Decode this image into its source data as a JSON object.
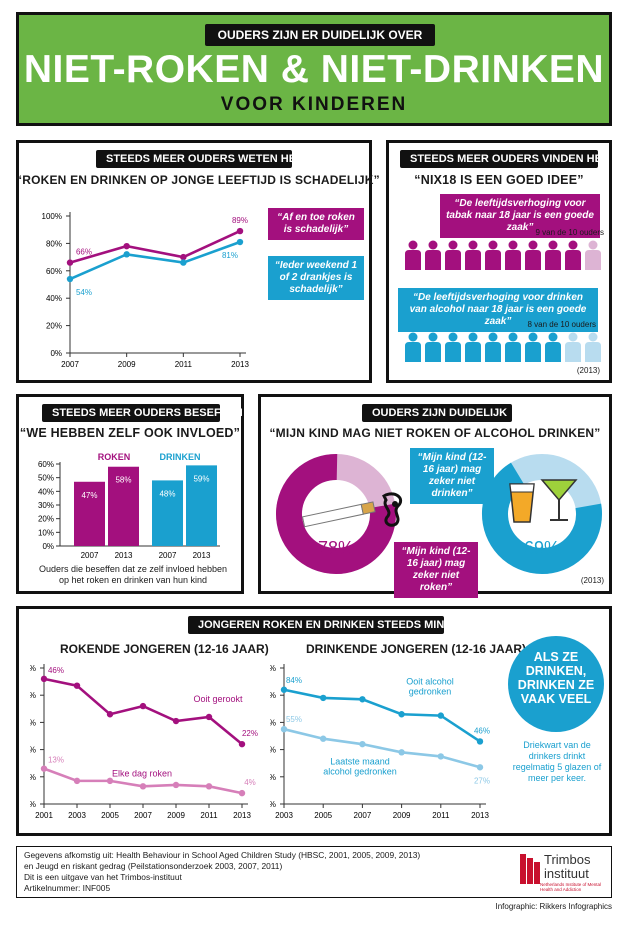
{
  "colors": {
    "green": "#6bb545",
    "purple": "#a3107e",
    "blue": "#1aa0cf",
    "lightpurple": "#ddb4d4",
    "lightblue": "#b8dcef",
    "dark": "#111111"
  },
  "header": {
    "pill": "OUDERS ZIJN ER DUIDELIJK OVER",
    "title": "NIET-ROKEN & NIET-DRINKEN",
    "subtitle": "VOOR KINDEREN"
  },
  "p1": {
    "pill": "STEEDS MEER OUDERS WETEN HET",
    "quote": "“ROKEN EN DRINKEN OP JONGE LEEFTIJD IS SCHADELIJK”",
    "bubble_purple": "“Af en toe roken is schadelijk”",
    "bubble_blue": "“Ieder weekend 1 of 2 drankjes is schadelijk”"
  },
  "p2": {
    "pill": "STEEDS MEER OUDERS VINDEN HET",
    "quote": "“NIX18 IS EEN GOED IDEE”",
    "bubble_purple": "“De leeftijdsverhoging voor tabak naar 18 jaar is een goede zaak”",
    "count_purple": "9 van de 10 ouders",
    "bubble_blue": "“De leeftijdsverhoging voor drinken van alcohol naar 18 jaar is een goede zaak”",
    "count_blue": "8 van de 10 ouders",
    "year": "(2013)"
  },
  "p3": {
    "pill": "STEEDS MEER OUDERS BESEFFEN",
    "quote": "“WE HEBBEN ZELF OOK INVLOED”",
    "label_roken": "ROKEN",
    "label_drinken": "DRINKEN",
    "caption": "Ouders die beseffen dat ze zelf invloed hebben op het roken en drinken van hun kind"
  },
  "p4": {
    "pill": "OUDERS ZIJN DUIDELIJK",
    "quote": "“MIJN KIND MAG NIET ROKEN OF ALCOHOL DRINKEN”",
    "pct_roken": "78%",
    "pct_drinken": "69%",
    "bubble_roken": "“Mijn kind (12-16 jaar) mag zeker niet roken”",
    "bubble_drinken": "“Mijn kind (12-16 jaar) mag zeker niet drinken”",
    "year": "(2013)"
  },
  "p5": {
    "pill": "JONGEREN ROKEN EN DRINKEN STEEDS MINDER",
    "title_roken": "ROKENDE JONGEREN (12-16 JAAR)",
    "title_drinken": "DRINKENDE JONGEREN (12-16 JAAR)",
    "circle": "ALS ZE DRINKEN, DRINKEN ZE VAAK VEEL",
    "circle_note": "Driekwart van de drinkers drinkt regelmatig 5 glazen of meer per keer."
  },
  "footer": {
    "line1": "Gegevens afkomstig uit: Health Behaviour in School Aged Children Study (HBSC, 2001, 2005, 2009, 2013)",
    "line2": "en Jeugd en riskant gedrag (Peilstationsonderzoek 2003, 2007, 2011)",
    "line3": "Dit is een uitgave van het Trimbos-instituut",
    "line4": "Artikelnummer: INF005",
    "logo_name": "Trimbos",
    "logo_name2": "instituut",
    "logo_sub": "Netherlands Institute of Mental Health and Addiction",
    "credit": "Infographic: Rikkers Infographics"
  },
  "chart_data": [
    {
      "type": "line",
      "title": "“ROKEN EN DRINKEN OP JONGE LEEFTIJD IS SCHADELIJK”",
      "x": [
        "2007",
        "2009",
        "2011",
        "2013"
      ],
      "ylim": [
        0,
        100
      ],
      "yticks": [
        "0%",
        "20%",
        "40%",
        "60%",
        "80%",
        "100%"
      ],
      "series": [
        {
          "name": "“Af en toe roken is schadelijk”",
          "values": [
            66,
            78,
            70,
            89
          ],
          "labels": [
            "66%",
            "",
            "",
            "89%"
          ]
        },
        {
          "name": "“Ieder weekend 1 of 2 drankjes is schadelijk”",
          "values": [
            54,
            72,
            66,
            81
          ],
          "labels": [
            "54%",
            "",
            "",
            "81%"
          ]
        }
      ]
    },
    {
      "type": "bar",
      "title": "“WE HEBBEN ZELF OOK INVLOED”",
      "groups": [
        "ROKEN",
        "DRINKEN"
      ],
      "x": [
        "2007",
        "2013"
      ],
      "ylim": [
        0,
        60
      ],
      "yticks": [
        "0%",
        "10%",
        "20%",
        "30%",
        "40%",
        "50%",
        "60%"
      ],
      "series": [
        {
          "name": "ROKEN",
          "values": [
            47,
            58
          ],
          "labels": [
            "47%",
            "58%"
          ]
        },
        {
          "name": "DRINKEN",
          "values": [
            48,
            59
          ],
          "labels": [
            "48%",
            "59%"
          ]
        }
      ]
    },
    {
      "type": "line",
      "title": "ROKENDE JONGEREN (12-16 JAAR)",
      "x": [
        "2001",
        "2003",
        "2005",
        "2007",
        "2009",
        "2011",
        "2013"
      ],
      "ylim": [
        0,
        50
      ],
      "yticks": [
        "0%",
        "10%",
        "20%",
        "30%",
        "40%",
        "50%"
      ],
      "series": [
        {
          "name": "Ooit gerookt",
          "values": [
            46,
            43.5,
            33,
            36,
            30.5,
            32,
            22
          ],
          "labels": [
            "46%",
            "",
            "",
            "",
            "",
            "",
            "22%"
          ]
        },
        {
          "name": "Elke dag roken",
          "values": [
            13,
            8.5,
            8.5,
            6.5,
            7,
            6.5,
            4
          ],
          "labels": [
            "13%",
            "",
            "",
            "",
            "",
            "",
            "4%"
          ]
        }
      ]
    },
    {
      "type": "line",
      "title": "DRINKENDE JONGEREN (12-16 JAAR)",
      "x": [
        "2003",
        "2005",
        "2007",
        "2009",
        "2011",
        "2013"
      ],
      "ylim": [
        0,
        100
      ],
      "yticks": [
        "0%",
        "20%",
        "40%",
        "60%",
        "80%",
        "100%"
      ],
      "series": [
        {
          "name": "Ooit alcohol gedronken",
          "values": [
            84,
            78,
            77,
            66,
            65,
            46
          ],
          "labels": [
            "84%",
            "",
            "",
            "",
            "",
            "46%"
          ]
        },
        {
          "name": "Laatste maand alcohol gedronken",
          "values": [
            55,
            48,
            44,
            38,
            35,
            27
          ],
          "labels": [
            "55%",
            "",
            "",
            "",
            "",
            "27%"
          ]
        }
      ]
    }
  ]
}
